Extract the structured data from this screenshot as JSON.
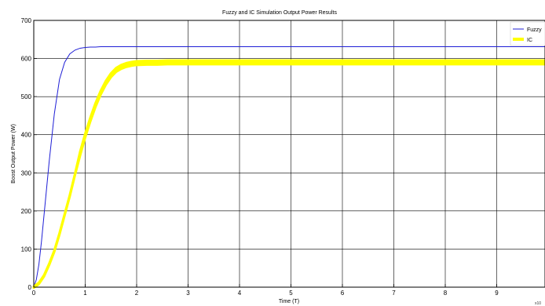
{
  "chart_data": {
    "type": "line",
    "title": "Fuzzy and IC Simulation Output Power Results",
    "xlabel": "Time (T)",
    "ylabel": "Boost Output Power (W)",
    "xlim": [
      0,
      10
    ],
    "ylim": [
      0,
      700
    ],
    "xticks": [
      "0",
      "1",
      "2",
      "3",
      "4",
      "5",
      "6",
      "7",
      "8",
      "9"
    ],
    "yticks": [
      "0",
      "100",
      "200",
      "300",
      "400",
      "500",
      "600",
      "700"
    ],
    "grid": true,
    "legend_position": "top-right",
    "corner_note": "x10",
    "series": [
      {
        "name": "Fuzzy",
        "color": "#1f1fd6",
        "x": [
          0,
          0.05,
          0.1,
          0.15,
          0.2,
          0.3,
          0.4,
          0.5,
          0.6,
          0.7,
          0.8,
          0.9,
          1.0,
          1.1,
          1.2,
          1.3,
          1.5,
          2,
          3,
          4,
          5,
          6,
          7,
          8,
          9,
          10
        ],
        "values": [
          0,
          20,
          60,
          120,
          190,
          330,
          455,
          545,
          590,
          612,
          622,
          627,
          629,
          630,
          630,
          631,
          631,
          631,
          631,
          631,
          631,
          631,
          631,
          631,
          631,
          631
        ]
      },
      {
        "name": "IC",
        "color": "#ffff00",
        "x": [
          0,
          0.1,
          0.2,
          0.3,
          0.4,
          0.5,
          0.6,
          0.7,
          0.8,
          0.9,
          1.0,
          1.1,
          1.2,
          1.3,
          1.4,
          1.5,
          1.6,
          1.7,
          1.8,
          1.9,
          2.0,
          2.2,
          2.4,
          2.6,
          2.8,
          3,
          4,
          5,
          6,
          7,
          8,
          9,
          10
        ],
        "values": [
          0,
          10,
          30,
          60,
          95,
          140,
          190,
          240,
          295,
          350,
          398,
          440,
          478,
          510,
          536,
          556,
          570,
          578,
          583,
          586,
          588,
          589,
          589,
          590,
          590,
          590,
          590,
          590,
          590,
          590,
          590,
          590,
          590
        ],
        "band": 10
      }
    ]
  }
}
